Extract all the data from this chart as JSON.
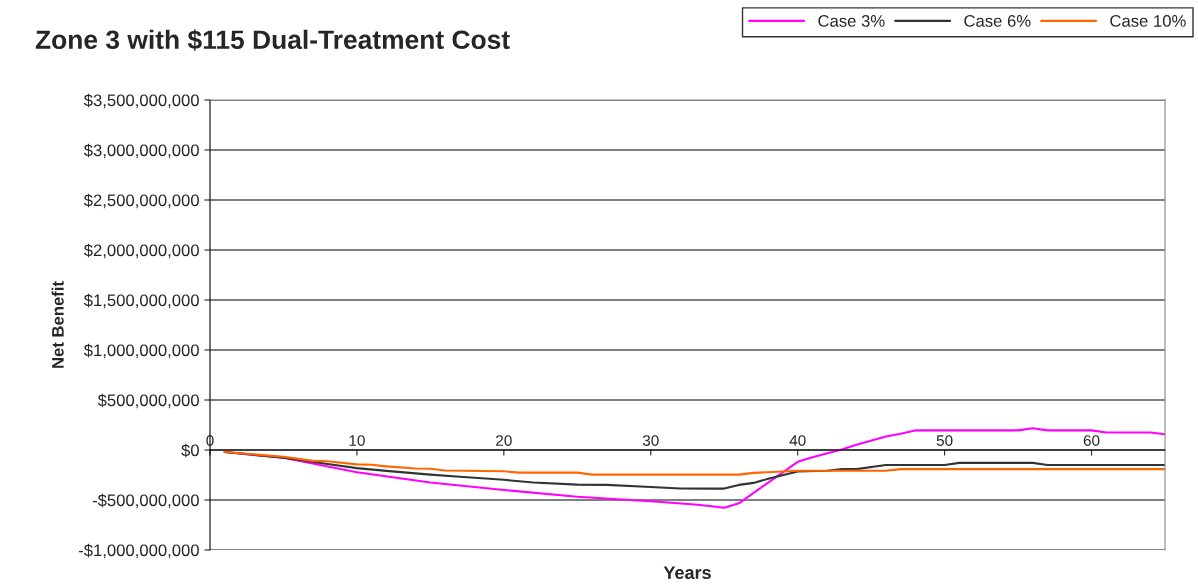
{
  "chart_data": {
    "type": "line",
    "title": "Zone 3 with $115 Dual-Treatment Cost",
    "xlabel": "Years",
    "ylabel": "Net Benefit",
    "xlim": [
      0,
      65
    ],
    "xticks": [
      0,
      10,
      20,
      30,
      40,
      50,
      60
    ],
    "ylim": [
      -1000000000,
      3500000000
    ],
    "yticks": [
      {
        "value": -1000000000,
        "label": "-$1,000,000,000"
      },
      {
        "value": -500000000,
        "label": "-$500,000,000"
      },
      {
        "value": 0,
        "label": "$0"
      },
      {
        "value": 500000000,
        "label": "$500,000,000"
      },
      {
        "value": 1000000000,
        "label": "$1,000,000,000"
      },
      {
        "value": 1500000000,
        "label": "$1,500,000,000"
      },
      {
        "value": 2000000000,
        "label": "$2,000,000,000"
      },
      {
        "value": 2500000000,
        "label": "$2,500,000,000"
      },
      {
        "value": 3000000000,
        "label": "$3,000,000,000"
      },
      {
        "value": 3500000000,
        "label": "$3,500,000,000"
      }
    ],
    "grid": "y",
    "legend": "top right",
    "marker": "none",
    "line_style": "solid",
    "series": [
      {
        "name": "Case 3%",
        "color": "#ff00ff",
        "x": [
          1,
          5,
          10,
          15,
          20,
          25,
          30,
          33,
          34,
          35,
          36,
          40,
          41,
          43,
          44,
          46,
          47,
          48,
          55,
          56,
          57,
          60,
          61,
          64,
          65
        ],
        "values": [
          -20000000,
          -78000000,
          -222000000,
          -325000000,
          -400000000,
          -468000000,
          -513000000,
          -545000000,
          -560000000,
          -578000000,
          -533000000,
          -118000000,
          -73000000,
          6000000,
          52000000,
          134000000,
          162000000,
          196000000,
          196000000,
          217000000,
          196000000,
          196000000,
          175000000,
          175000000,
          158000000
        ]
      },
      {
        "name": "Case 6%",
        "color": "#333333",
        "x": [
          1,
          5,
          8,
          10,
          12,
          15,
          17,
          20,
          22,
          25,
          27,
          30,
          32,
          34,
          35,
          36,
          37,
          38,
          40,
          42,
          43,
          44,
          46,
          50,
          51,
          56,
          57,
          65
        ],
        "values": [
          -20000000,
          -77000000,
          -140000000,
          -181000000,
          -209000000,
          -246000000,
          -267000000,
          -298000000,
          -325000000,
          -346000000,
          -349000000,
          -370000000,
          -385000000,
          -386000000,
          -386000000,
          -349000000,
          -329000000,
          -287000000,
          -215000000,
          -208000000,
          -191000000,
          -191000000,
          -150000000,
          -150000000,
          -129000000,
          -129000000,
          -150000000,
          -150000000
        ]
      },
      {
        "name": "Case 10%",
        "color": "#ff6600",
        "x": [
          1,
          5,
          7,
          8,
          10,
          11,
          12,
          14,
          15,
          16,
          20,
          21,
          25,
          26,
          36,
          37,
          40,
          46,
          47,
          65
        ],
        "values": [
          -20000000,
          -68000000,
          -109000000,
          -113000000,
          -144000000,
          -147000000,
          -164000000,
          -185000000,
          -188000000,
          -205000000,
          -212000000,
          -226000000,
          -226000000,
          -246000000,
          -246000000,
          -229000000,
          -208000000,
          -208000000,
          -191000000,
          -191000000
        ]
      }
    ]
  }
}
